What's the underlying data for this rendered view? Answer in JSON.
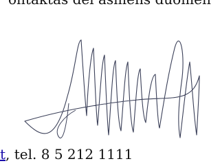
{
  "document": {
    "top_text": "ontaktas dėl asmens duomen",
    "link_text": "t",
    "phone_text": ", tel. 8 5 212 1111"
  }
}
